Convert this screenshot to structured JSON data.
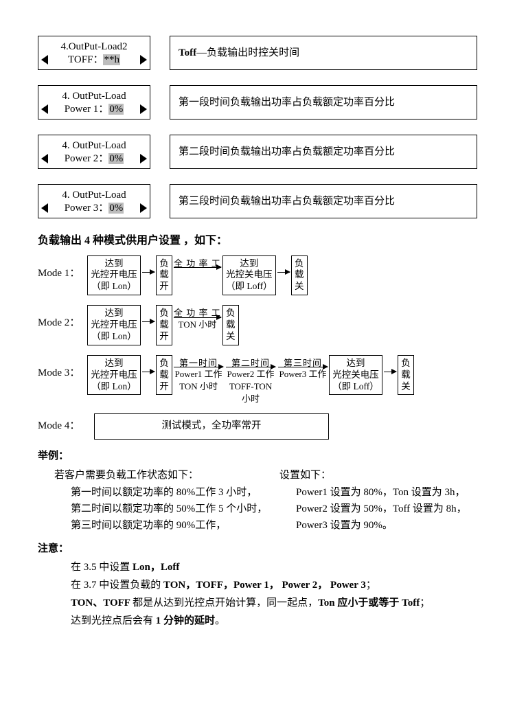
{
  "rows": [
    {
      "lcd_l1": "4.OutPut-Load2",
      "lcd_l2_prefix": "TOFF：",
      "lcd_l2_hl": "**h",
      "desc_bold": "Toff",
      "desc_rest": "—负载输出时控关时间"
    },
    {
      "lcd_l1": "4. OutPut-Load",
      "lcd_l2_prefix": "Power 1：",
      "lcd_l2_hl": "0%",
      "desc_rest": "第一段时间负载输出功率占负载额定功率百分比"
    },
    {
      "lcd_l1": "4. OutPut-Load",
      "lcd_l2_prefix": "Power 2：",
      "lcd_l2_hl": "0%",
      "desc_rest": "第二段时间负载输出功率占负载额定功率百分比"
    },
    {
      "lcd_l1": "4. OutPut-Load",
      "lcd_l2_prefix": "Power 3：",
      "lcd_l2_hl": "0%",
      "desc_rest": "第三段时间负载输出功率占负载额定功率百分比"
    }
  ],
  "section_title": "负载输出 4 种模式供用户设置 ，如下：",
  "modes": {
    "m1_label": "Mode 1：",
    "m2_label": "Mode 2：",
    "m3_label": "Mode 3：",
    "m4_label": "Mode 4：",
    "box_lon_l1": "达到",
    "box_lon_l2": "光控开电压",
    "box_lon_l3": "（即 Lon）",
    "box_on_l1": "负",
    "box_on_l2": "载",
    "box_on_l3": "开",
    "arrow_full": "全 功 率 工",
    "arrow_full_ton_l1": "全 功 率 工",
    "arrow_full_ton_l2": "TON 小时",
    "box_loff_l1": "达到",
    "box_loff_l2": "光控关电压",
    "box_loff_l3": "（即 Loff）",
    "box_off_l1": "负",
    "box_off_l2": "载",
    "box_off_l3": "关",
    "seg1_top": "第一时间",
    "seg1_l1": "Power1 工作",
    "seg1_l2": "TON 小时",
    "seg2_top": "第二时间",
    "seg2_l1": "Power2 工作",
    "seg2_l2": "TOFF-TON",
    "seg2_l3": "小时",
    "seg3_top": "第三时间",
    "seg3_l1": "Power3 工作",
    "mode4_text": "测试模式，全功率常开"
  },
  "example": {
    "heading": "举例：",
    "left0": "若客户需要负载工作状态如下：",
    "left1": "第一时间以额定功率的 80%工作 3 小时，",
    "left2": "第二时间以额定功率的 50%工作 5 个小时，",
    "left3": "第三时间以额定功率的 90%工作，",
    "right0": "设置如下：",
    "right1": "Power1 设置为 80%，Ton 设置为 3h，",
    "right2": "Power2 设置为 50%，Toff 设置为 8h，",
    "right3": "Power3 设置为 90%。"
  },
  "notes": {
    "heading": "注意：",
    "n1_a": "在 3.5 中设置 ",
    "n1_b": "Lon，Loff",
    "n2_a": "在 3.7 中设置负载的 ",
    "n2_b": "TON，TOFF，Power 1， Power 2， Power 3",
    "n2_c": "；",
    "n3_a": "TON、TOFF ",
    "n3_b": "都是从达到光控点开始计算，同一起点，",
    "n3_c": "Ton 应小于或等于 Toff",
    "n3_d": "；",
    "n4_a": "达到光控点后会有 ",
    "n4_b": "1 分钟的延时",
    "n4_c": "。"
  }
}
